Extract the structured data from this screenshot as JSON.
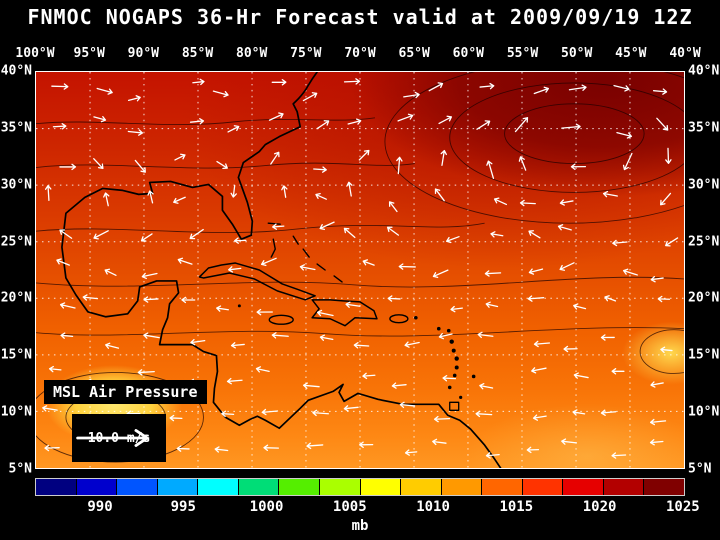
{
  "title": "FNMOC NOGAPS 36-Hr Forecast valid at 2009/09/19 12Z",
  "map": {
    "overlay_label": "MSL Air Pressure",
    "wind_legend_label": "10.0 m/s",
    "lon_labels": [
      "100°W",
      "95°W",
      "90°W",
      "85°W",
      "80°W",
      "75°W",
      "70°W",
      "65°W",
      "60°W",
      "55°W",
      "50°W",
      "45°W",
      "40°W"
    ],
    "lat_labels": [
      "40°N",
      "35°N",
      "30°N",
      "25°N",
      "20°N",
      "15°N",
      "10°N",
      "5°N"
    ]
  },
  "colorbar": {
    "unit_label": "mb",
    "tick_labels": [
      "990",
      "995",
      "1000",
      "1005",
      "1010",
      "1015",
      "1020",
      "1025"
    ],
    "segment_colors": [
      "#000080",
      "#0000cd",
      "#0055ff",
      "#00aaff",
      "#00ffff",
      "#00dd77",
      "#55ee00",
      "#aaff00",
      "#ffff00",
      "#ffcc00",
      "#ff9900",
      "#ff6600",
      "#ff3300",
      "#e60000",
      "#b30000",
      "#800000"
    ]
  },
  "style": {
    "background": "#000000",
    "text_color": "#ffffff",
    "coastline_color": "#000000",
    "wind_arrow_color": "#ffffff"
  }
}
